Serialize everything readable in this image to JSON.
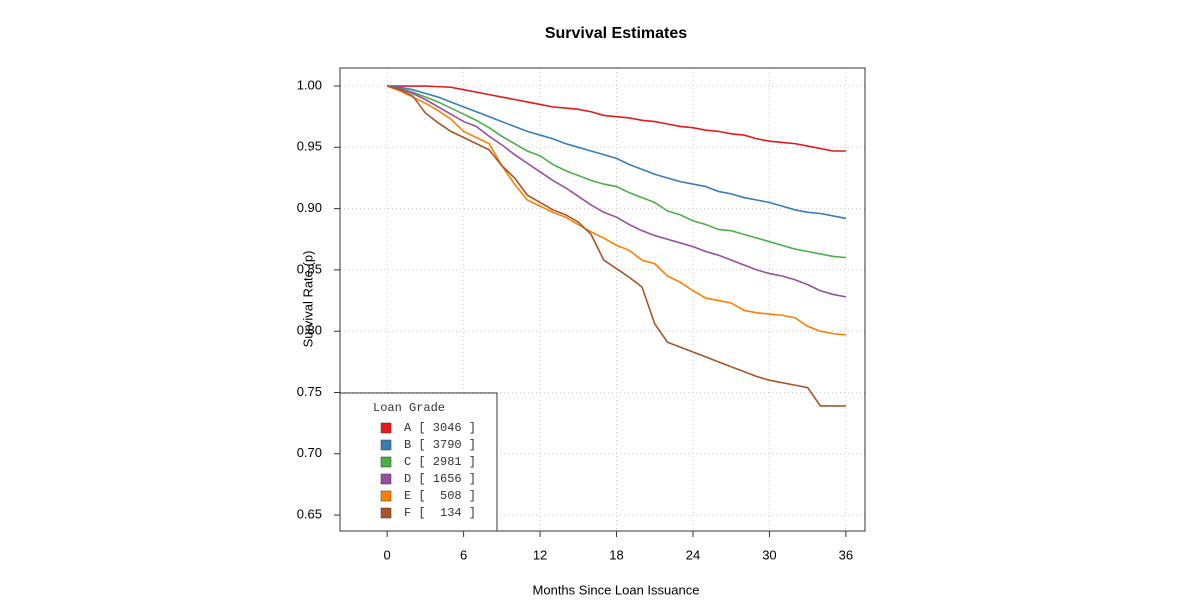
{
  "chart_data": {
    "type": "line",
    "title": "Survival Estimates",
    "x_label": "Months Since Loan Issuance",
    "y_label": "Survival Rate (p)",
    "legend_title": "Loan Grade",
    "legend_position": "bottom-left",
    "grid": true,
    "xlim": [
      -3.7,
      37.5
    ],
    "ylim": [
      0.637,
      1.0147
    ],
    "xticks": [
      0,
      6,
      12,
      18,
      24,
      30,
      36
    ],
    "yticks": [
      {
        "value": 1.0,
        "label": "1.00"
      },
      0.95,
      {
        "value": 0.9,
        "label": "0.90"
      },
      0.85,
      {
        "value": 0.8,
        "label": "0.80"
      },
      0.75,
      {
        "value": 0.7,
        "label": "0.70"
      },
      0.65
    ],
    "x": [
      0,
      1,
      2,
      3,
      4,
      5,
      6,
      7,
      8,
      9,
      10,
      11,
      12,
      13,
      14,
      15,
      16,
      17,
      18,
      19,
      20,
      21,
      22,
      23,
      24,
      25,
      26,
      27,
      28,
      29,
      30,
      31,
      32,
      33,
      34,
      35,
      36
    ],
    "series": [
      {
        "name": "A [ 3046 ]",
        "color": "#e41a1c",
        "values": [
          1,
          1,
          1,
          1,
          0.9995,
          0.999,
          0.997,
          0.995,
          0.993,
          0.991,
          0.989,
          0.987,
          0.985,
          0.983,
          0.982,
          0.981,
          0.979,
          0.976,
          0.975,
          0.974,
          0.972,
          0.971,
          0.969,
          0.967,
          0.966,
          0.964,
          0.963,
          0.961,
          0.96,
          0.957,
          0.955,
          0.954,
          0.953,
          0.951,
          0.949,
          0.947,
          0.947
        ]
      },
      {
        "name": "B [ 3790 ]",
        "color": "#377eb8",
        "values": [
          1,
          0.999,
          0.997,
          0.994,
          0.991,
          0.987,
          0.983,
          0.979,
          0.975,
          0.971,
          0.967,
          0.963,
          0.96,
          0.957,
          0.953,
          0.95,
          0.947,
          0.944,
          0.941,
          0.936,
          0.932,
          0.928,
          0.925,
          0.922,
          0.92,
          0.918,
          0.914,
          0.912,
          0.909,
          0.907,
          0.905,
          0.902,
          0.899,
          0.897,
          0.896,
          0.894,
          0.892
        ]
      },
      {
        "name": "C [ 2981 ]",
        "color": "#4daf4a",
        "values": [
          1,
          0.998,
          0.995,
          0.991,
          0.987,
          0.982,
          0.977,
          0.972,
          0.966,
          0.959,
          0.953,
          0.947,
          0.943,
          0.936,
          0.931,
          0.927,
          0.923,
          0.92,
          0.918,
          0.913,
          0.909,
          0.905,
          0.898,
          0.895,
          0.89,
          0.887,
          0.883,
          0.882,
          0.879,
          0.876,
          0.873,
          0.87,
          0.867,
          0.865,
          0.863,
          0.861,
          0.86
        ]
      },
      {
        "name": "D [ 1656 ]",
        "color": "#984ea3",
        "values": [
          1,
          0.998,
          0.994,
          0.989,
          0.983,
          0.977,
          0.971,
          0.967,
          0.959,
          0.952,
          0.944,
          0.937,
          0.93,
          0.923,
          0.917,
          0.91,
          0.903,
          0.897,
          0.893,
          0.887,
          0.882,
          0.878,
          0.875,
          0.872,
          0.869,
          0.865,
          0.862,
          0.858,
          0.854,
          0.85,
          0.847,
          0.845,
          0.842,
          0.838,
          0.833,
          0.83,
          0.828
        ]
      },
      {
        "name": "E [  508 ]",
        "color": "#ff7f00",
        "values": [
          1,
          0.996,
          0.991,
          0.986,
          0.98,
          0.973,
          0.963,
          0.958,
          0.953,
          0.935,
          0.92,
          0.907,
          0.902,
          0.897,
          0.893,
          0.887,
          0.881,
          0.876,
          0.87,
          0.866,
          0.858,
          0.855,
          0.845,
          0.84,
          0.833,
          0.827,
          0.825,
          0.823,
          0.817,
          0.815,
          0.814,
          0.813,
          0.811,
          0.804,
          0.8,
          0.798,
          0.797
        ]
      },
      {
        "name": "F [  134 ]",
        "color": "#a65628",
        "values": [
          1,
          0.997,
          0.992,
          0.978,
          0.97,
          0.963,
          0.958,
          0.953,
          0.948,
          0.935,
          0.925,
          0.911,
          0.905,
          0.899,
          0.895,
          0.889,
          0.879,
          0.858,
          0.851,
          0.844,
          0.836,
          0.806,
          0.791,
          0.787,
          0.783,
          0.779,
          0.775,
          0.771,
          0.767,
          0.763,
          0.76,
          0.758,
          0.756,
          0.754,
          0.739,
          0.739,
          0.739
        ]
      }
    ]
  }
}
